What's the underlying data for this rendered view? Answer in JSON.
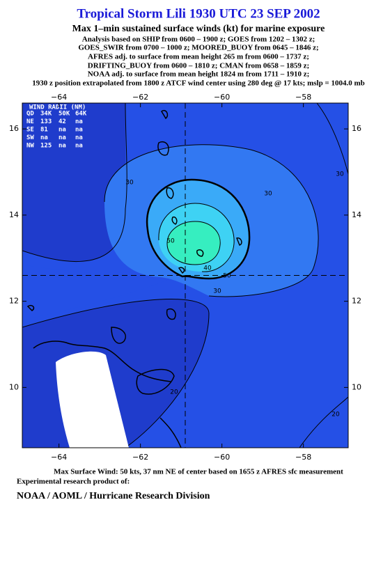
{
  "header": {
    "title": "Tropical Storm Lili 1930 UTC 23 SEP 2002",
    "subtitle": "Max 1–min sustained surface winds (kt) for marine exposure",
    "notes": [
      "Analysis based on  SHIP from 0600 – 1900 z;  GOES from 1202 – 1302 z;",
      "GOES_SWIR from 0700 – 1000 z;  MOORED_BUOY from 0645 – 1846 z;",
      "AFRES adj. to surface from mean height 265 m from 0600 – 1737 z;",
      "DRIFTING_BUOY from 0600 – 1810 z;  CMAN from 0658 – 1859 z;",
      "NOAA adj. to surface from mean height 1824 m from 1711 – 1910 z;",
      "1930 z position extrapolated from 1800 z ATCF wind center using 280 deg @ 17 kts; mslp = 1004.0 mb"
    ]
  },
  "map": {
    "xlim": [
      -64.9,
      -56.9
    ],
    "ylim": [
      8.6,
      16.6
    ],
    "xticks": [
      {
        "value": -64,
        "label": "−64"
      },
      {
        "value": -62,
        "label": "−62"
      },
      {
        "value": -60,
        "label": "−60"
      },
      {
        "value": -58,
        "label": "−58"
      }
    ],
    "yticks": [
      10,
      12,
      14,
      16
    ],
    "center": {
      "lon": -60.9,
      "lat": 12.6
    },
    "wind_radii": {
      "title": "WIND RADII (NM)",
      "header": [
        "QD",
        "34K",
        "50K",
        "64K"
      ],
      "rows": [
        [
          "NE",
          "133",
          "42",
          "na"
        ],
        [
          "SE",
          "81",
          "na",
          "na"
        ],
        [
          "SW",
          "na",
          "na",
          "na"
        ],
        [
          "NW",
          "125",
          "na",
          "na"
        ]
      ]
    },
    "contour_labels": [
      "30",
      "30",
      "50",
      "40",
      "50",
      "20",
      "20",
      "30",
      "30"
    ]
  },
  "footer": {
    "max_wind": "Max Surface Wind: 50 kts, 37 nm NE of center based on 1655 z AFRES sfc measurement",
    "credit": "Experimental research product of:",
    "org": "NOAA / AOML / Hurricane Research Division"
  }
}
